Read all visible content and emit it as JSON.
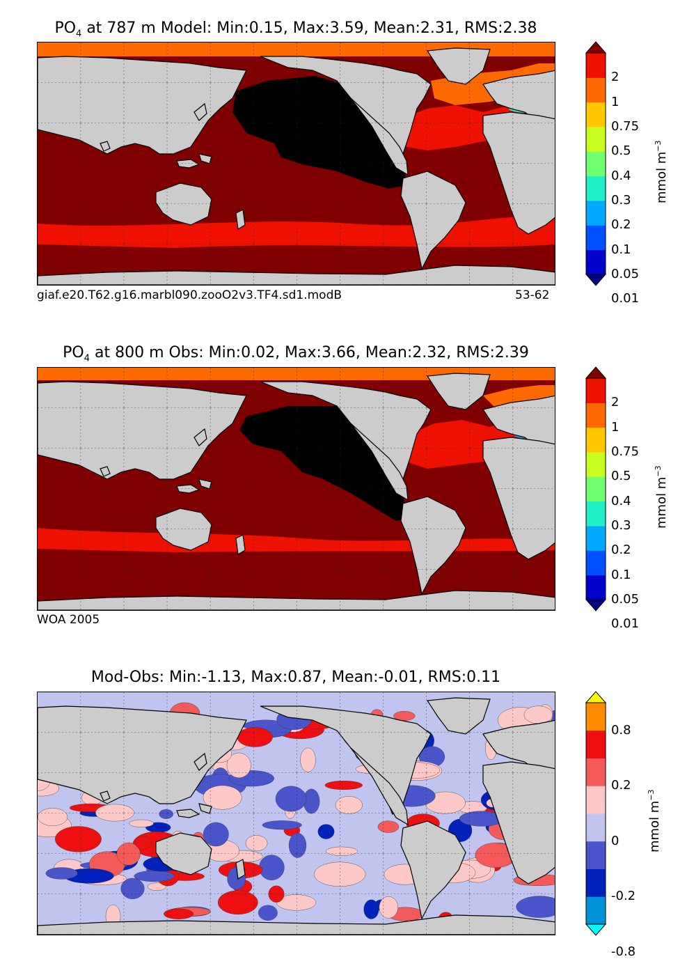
{
  "panels": [
    {
      "title_prefix": "PO",
      "title_sub": "4",
      "title_rest": " at 787 m Model: Min:0.15, Max:3.59, Mean:2.31, RMS:2.38",
      "footer_left": "giaf.e20.T62.g16.marbl090.zooO2v3.TF4.sd1.modB",
      "footer_right": "53-62",
      "colorbar_labels": [
        "2",
        "1",
        "0.75",
        "0.5",
        "0.4",
        "0.3",
        "0.2",
        "0.1",
        "0.05",
        "0.01"
      ],
      "colorbar_colors": [
        "#000080",
        "#0000cd",
        "#0050ff",
        "#00a8ff",
        "#20f0c8",
        "#70ff70",
        "#c8ff20",
        "#ffc800",
        "#ff6a00",
        "#ee1000",
        "#800000"
      ],
      "units": "mmol m",
      "units_sup": "−3"
    },
    {
      "title_prefix": "PO",
      "title_sub": "4",
      "title_rest": " at 800 m Obs: Min:0.02, Max:3.66, Mean:2.32, RMS:2.39",
      "footer_left": "WOA 2005",
      "colorbar_labels": [
        "2",
        "1",
        "0.75",
        "0.5",
        "0.4",
        "0.3",
        "0.2",
        "0.1",
        "0.05",
        "0.01"
      ],
      "colorbar_colors": [
        "#000080",
        "#0000cd",
        "#0050ff",
        "#00a8ff",
        "#20f0c8",
        "#70ff70",
        "#c8ff20",
        "#ffc800",
        "#ff6a00",
        "#ee1000",
        "#800000"
      ],
      "units": "mmol m",
      "units_sup": "−3"
    },
    {
      "title": "Mod-Obs: Min:-1.13, Max:0.87, Mean:-0.01, RMS:0.11",
      "colorbar_labels": [
        "0.8",
        "0.2",
        "0",
        "-0.2",
        "-0.8"
      ],
      "colorbar_colors": [
        "#00ffff",
        "#0090d8",
        "#0022bb",
        "#4a55cc",
        "#c0c4ee",
        "#ffc8c8",
        "#f55a5a",
        "#ee1010",
        "#ff8c00",
        "#ffff00"
      ],
      "units": "mmol m",
      "units_sup": "−3"
    }
  ],
  "chart_data": [
    {
      "type": "heatmap",
      "title": "PO4 at 787 m Model: Min:0.15, Max:3.59, Mean:2.31, RMS:2.38",
      "stats": {
        "min": 0.15,
        "max": 3.59,
        "mean": 2.31,
        "rms": 2.38
      },
      "depth_m": 787,
      "colorbar_levels": [
        0.01,
        0.05,
        0.1,
        0.2,
        0.3,
        0.4,
        0.5,
        0.75,
        1,
        2
      ],
      "units": "mmol m^-3",
      "source": "giaf.e20.T62.g16.marbl090.zooO2v3.TF4.sd1.modB",
      "years": "53-62"
    },
    {
      "type": "heatmap",
      "title": "PO4 at 800 m Obs: Min:0.02, Max:3.66, Mean:2.32, RMS:2.39",
      "stats": {
        "min": 0.02,
        "max": 3.66,
        "mean": 2.32,
        "rms": 2.39
      },
      "depth_m": 800,
      "colorbar_levels": [
        0.01,
        0.05,
        0.1,
        0.2,
        0.3,
        0.4,
        0.5,
        0.75,
        1,
        2
      ],
      "units": "mmol m^-3",
      "source": "WOA 2005"
    },
    {
      "type": "heatmap",
      "title": "Mod-Obs: Min:-1.13, Max:0.87, Mean:-0.01, RMS:0.11",
      "stats": {
        "min": -1.13,
        "max": 0.87,
        "mean": -0.01,
        "rms": 0.11
      },
      "colorbar_levels": [
        -0.8,
        -0.2,
        0,
        0.2,
        0.8
      ],
      "units": "mmol m^-3"
    }
  ]
}
